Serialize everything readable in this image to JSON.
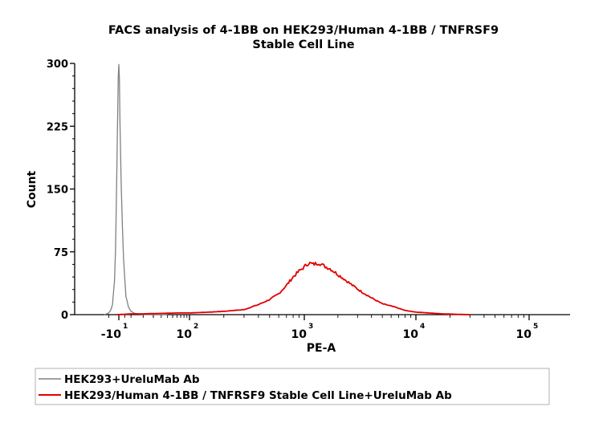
{
  "chart_data": {
    "type": "line",
    "title_line1": "FACS analysis of 4-1BB on HEK293/Human 4-1BB / TNFRSF9",
    "title_line2": "Stable Cell Line",
    "xlabel": "PE-A",
    "ylabel": "Count",
    "ylim": [
      0,
      300
    ],
    "y_ticks": [
      "0",
      "75",
      "150",
      "225",
      "300"
    ],
    "x_ticks": [
      {
        "base": "-10",
        "exp": "1",
        "value": -10
      },
      {
        "base": "10",
        "exp": "2",
        "value": 100
      },
      {
        "base": "10",
        "exp": "3",
        "value": 1000
      },
      {
        "base": "10",
        "exp": "4",
        "value": 10000
      },
      {
        "base": "10",
        "exp": "5",
        "value": 100000
      }
    ],
    "x_scale": "biexponential",
    "grid": false,
    "legend_position": "bottom",
    "series": [
      {
        "name": "HEK293+UreluMab Ab",
        "color": "#808080",
        "x": [
          -25,
          -20,
          -18,
          -16,
          -14,
          -13,
          -12,
          -11,
          -10.5,
          -10,
          -9.5,
          -9,
          -8,
          -7,
          -6,
          -5,
          -4,
          -2,
          0,
          3,
          6,
          10,
          20,
          40
        ],
        "y": [
          0,
          2,
          5,
          12,
          40,
          80,
          150,
          240,
          285,
          300,
          280,
          230,
          160,
          110,
          70,
          42,
          22,
          9,
          4,
          1.5,
          0.8,
          0.3,
          0,
          0
        ]
      },
      {
        "name": "HEK293/Human 4-1BB / TNFRSF9 Stable Cell Line+UreluMab Ab",
        "color": "#e00000",
        "x": [
          -12,
          -5,
          0,
          10,
          30,
          60,
          100,
          150,
          200,
          300,
          400,
          500,
          600,
          700,
          800,
          900,
          1000,
          1100,
          1200,
          1350,
          1500,
          1700,
          2000,
          2300,
          2700,
          3200,
          4000,
          5000,
          6500,
          8000,
          10000,
          13000,
          17000,
          22000,
          30000
        ],
        "y": [
          0,
          0.5,
          1,
          1,
          1.5,
          2,
          2,
          3,
          4,
          6,
          12,
          18,
          25,
          35,
          45,
          52,
          57,
          62,
          60,
          62,
          58,
          55,
          48,
          42,
          35,
          28,
          20,
          13,
          9,
          5,
          3,
          2,
          1,
          0.5,
          0
        ]
      }
    ]
  }
}
